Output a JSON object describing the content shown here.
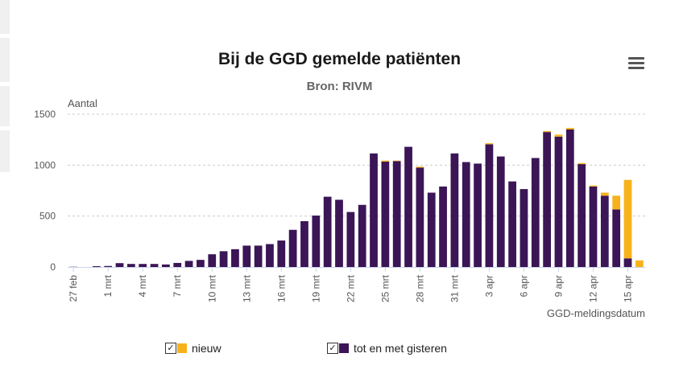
{
  "title": "Bij de GGD gemelde patiënten",
  "subtitle": "Bron: RIVM",
  "menu_icon": "hamburger-menu-icon",
  "colors": {
    "nieuw": "#f7b21b",
    "tot": "#3b1556",
    "grid": "#cccccc",
    "axis": "#ccd6eb"
  },
  "legend": {
    "nieuw_label": "nieuw",
    "tot_label": "tot en met gisteren",
    "check_icon": "checkbox-checked-icon"
  },
  "chart_data": {
    "type": "bar",
    "stacked": true,
    "ylabel": "Aantal",
    "xlabel": "GGD-meldingsdatum",
    "ylim": [
      0,
      1500
    ],
    "yticks": [
      0,
      500,
      1000,
      1500
    ],
    "grid": true,
    "legend_position": "bottom",
    "categories": [
      "27 feb",
      "28 feb",
      "29 feb",
      "1 mrt",
      "2 mrt",
      "3 mrt",
      "4 mrt",
      "5 mrt",
      "6 mrt",
      "7 mrt",
      "8 mrt",
      "9 mrt",
      "10 mrt",
      "11 mrt",
      "12 mrt",
      "13 mrt",
      "14 mrt",
      "15 mrt",
      "16 mrt",
      "17 mrt",
      "18 mrt",
      "19 mrt",
      "20 mrt",
      "21 mrt",
      "22 mrt",
      "23 mrt",
      "24 mrt",
      "25 mrt",
      "26 mrt",
      "27 mrt",
      "28 mrt",
      "29 mrt",
      "30 mrt",
      "31 mrt",
      "1 apr",
      "2 apr",
      "3 apr",
      "4 apr",
      "5 apr",
      "6 apr",
      "7 apr",
      "8 apr",
      "9 apr",
      "10 apr",
      "11 apr",
      "12 apr",
      "13 apr",
      "14 apr",
      "15 apr",
      "16 apr"
    ],
    "x_tick_labels": [
      "27 feb",
      "1 mrt",
      "4 mrt",
      "7 mrt",
      "10 mrt",
      "13 mrt",
      "16 mrt",
      "19 mrt",
      "22 mrt",
      "25 mrt",
      "28 mrt",
      "31 mrt",
      "3 apr",
      "6 apr",
      "9 apr",
      "12 apr",
      "15 apr"
    ],
    "series": [
      {
        "name": "tot en met gisteren",
        "values": [
          2,
          0,
          8,
          10,
          38,
          30,
          30,
          30,
          25,
          40,
          60,
          70,
          125,
          155,
          175,
          210,
          210,
          225,
          260,
          365,
          450,
          505,
          690,
          660,
          540,
          610,
          1115,
          1035,
          1040,
          1180,
          975,
          730,
          790,
          1115,
          1030,
          1015,
          1205,
          1085,
          840,
          765,
          1070,
          1325,
          1280,
          1350,
          1010,
          790,
          700,
          565,
          85,
          0
        ]
      },
      {
        "name": "nieuw",
        "values": [
          0,
          0,
          0,
          0,
          0,
          0,
          0,
          0,
          0,
          0,
          0,
          0,
          0,
          0,
          0,
          0,
          0,
          0,
          0,
          0,
          0,
          0,
          0,
          0,
          0,
          0,
          0,
          10,
          5,
          0,
          10,
          0,
          0,
          0,
          0,
          0,
          10,
          0,
          0,
          0,
          0,
          10,
          20,
          15,
          10,
          10,
          30,
          135,
          770,
          65
        ]
      }
    ]
  }
}
